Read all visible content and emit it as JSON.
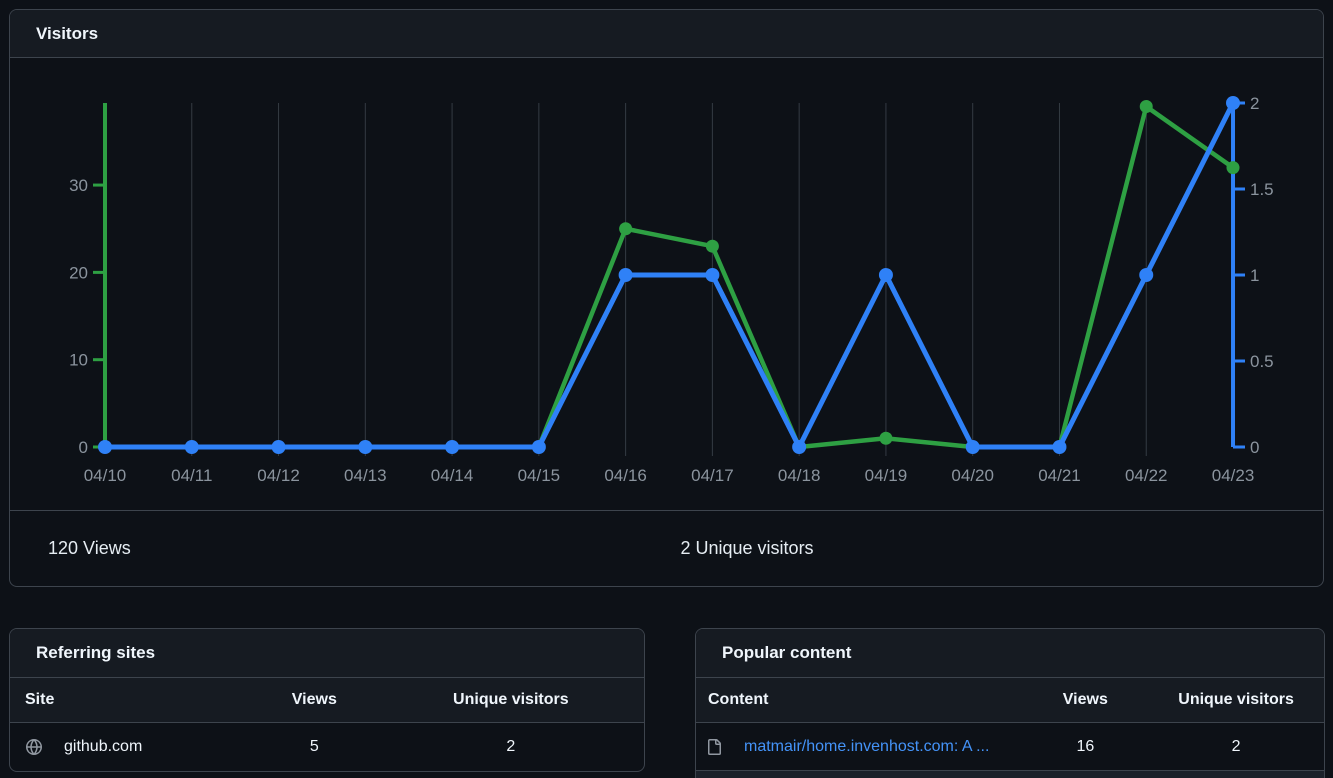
{
  "visitors_card": {
    "title": "Visitors",
    "summary_views": "120 Views",
    "summary_unique": "2 Unique visitors"
  },
  "chart_data": {
    "type": "line",
    "title": "Visitors",
    "categories": [
      "04/10",
      "04/11",
      "04/12",
      "04/13",
      "04/14",
      "04/15",
      "04/16",
      "04/17",
      "04/18",
      "04/19",
      "04/20",
      "04/21",
      "04/22",
      "04/23"
    ],
    "series": [
      {
        "name": "Views",
        "axis": "left",
        "color": "#2ea043",
        "values": [
          0,
          0,
          0,
          0,
          0,
          0,
          25,
          23,
          0,
          1,
          0,
          0,
          39,
          32
        ]
      },
      {
        "name": "Unique visitors",
        "axis": "right",
        "color": "#2f81f7",
        "values": [
          0,
          0,
          0,
          0,
          0,
          0,
          1,
          1,
          0,
          1,
          0,
          0,
          1,
          2
        ]
      }
    ],
    "left_axis": {
      "ticks": [
        0,
        10,
        20,
        30
      ],
      "max": 39.4,
      "color": "#2ea043",
      "label_color": "#8b949e"
    },
    "right_axis": {
      "ticks": [
        0,
        0.5,
        1,
        1.5,
        2
      ],
      "max": 2,
      "color": "#2f81f7",
      "label_color": "#8b949e"
    },
    "grid": "vertical",
    "grid_color": "#343b43",
    "legend_position": "none"
  },
  "referring_sites": {
    "title": "Referring sites",
    "columns": [
      "Site",
      "Views",
      "Unique visitors"
    ],
    "rows": [
      {
        "icon": "globe-icon",
        "site": "github.com",
        "views": "5",
        "unique": "2"
      }
    ]
  },
  "popular_content": {
    "title": "Popular content",
    "columns": [
      "Content",
      "Views",
      "Unique visitors"
    ],
    "rows": [
      {
        "icon": "file-icon",
        "content": "matmair/home.invenhost.com: A ...",
        "views": "16",
        "unique": "2"
      }
    ]
  },
  "colors": {
    "page_bg": "#0d1117",
    "card_bg": "#0d1117",
    "header_bg": "#161b22",
    "border": "#3d444d",
    "views_green": "#2ea043",
    "unique_blue": "#2f81f7",
    "muted_text": "#8b949e",
    "link": "#4493f8"
  }
}
